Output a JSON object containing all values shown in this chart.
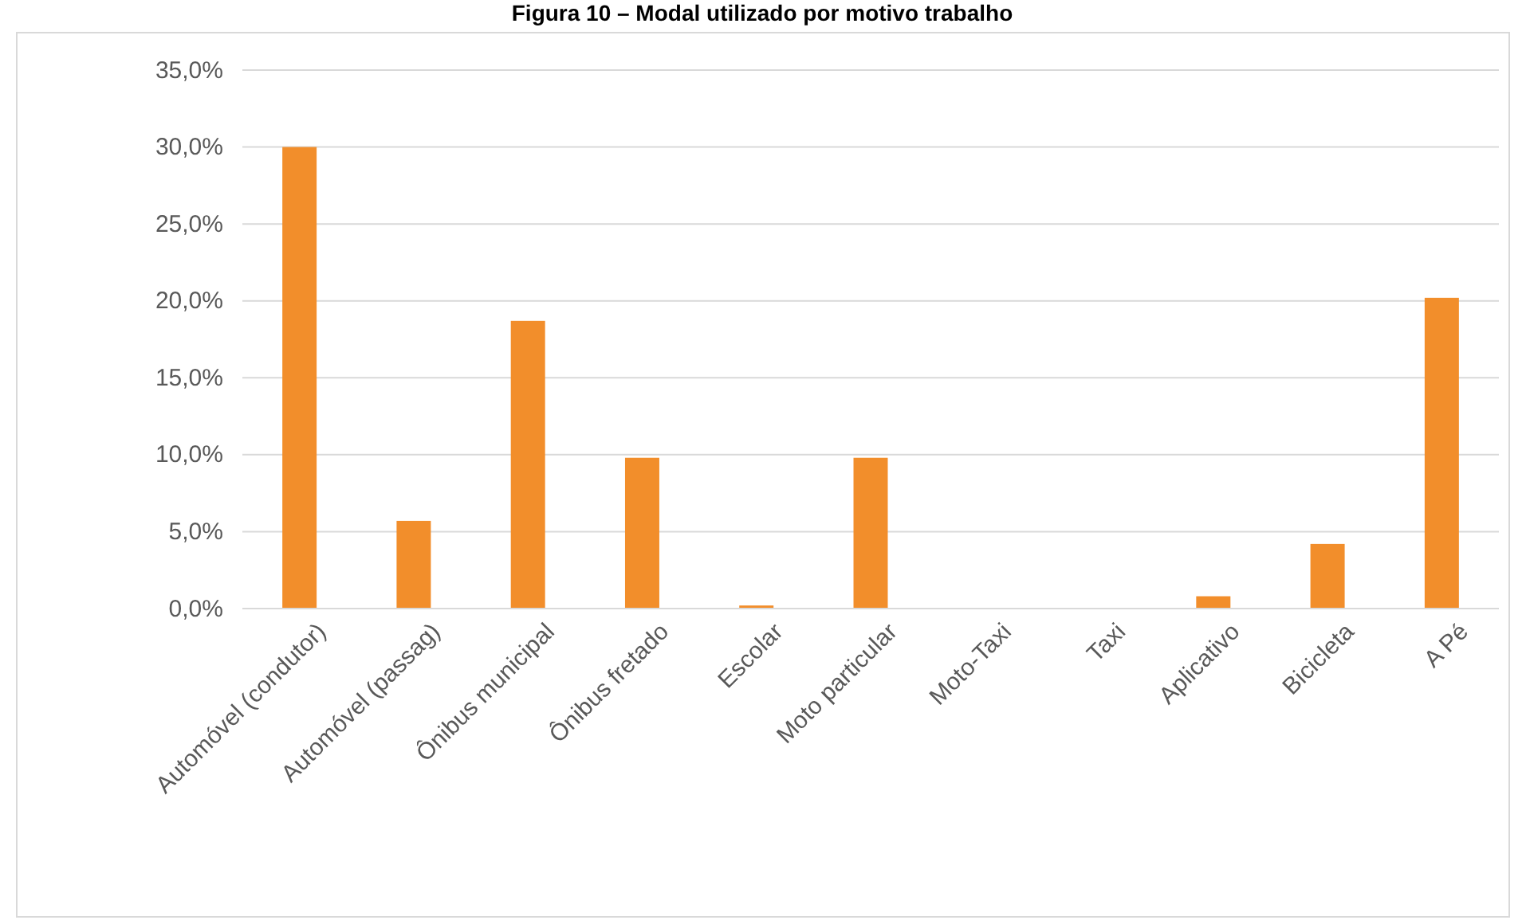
{
  "chart_data": {
    "type": "bar",
    "title": "Figura 10 – Modal utilizado por motivo trabalho",
    "categories": [
      "Automóvel (condutor)",
      "Automóvel (passag)",
      "Ônibus municipal",
      "Ônibus fretado",
      "Escolar",
      "Moto particular",
      "Moto-Taxi",
      "Taxi",
      "Aplicativo",
      "Bicicleta",
      "A Pé"
    ],
    "values": [
      30.0,
      5.7,
      18.7,
      9.8,
      0.2,
      9.8,
      0,
      0,
      0.8,
      4.2,
      20.2
    ],
    "color": "#f28e2b",
    "ylim": [
      0,
      35
    ],
    "yticks": [
      {
        "value": 0,
        "label": "0,0%"
      },
      {
        "value": 5,
        "label": "5,0%"
      },
      {
        "value": 10,
        "label": "10,0%"
      },
      {
        "value": 15,
        "label": "15,0%"
      },
      {
        "value": 20,
        "label": "20,0%"
      },
      {
        "value": 25,
        "label": "25,0%"
      },
      {
        "value": 30,
        "label": "30,0%"
      },
      {
        "value": 35,
        "label": "35,0%"
      }
    ],
    "grid": "y"
  }
}
